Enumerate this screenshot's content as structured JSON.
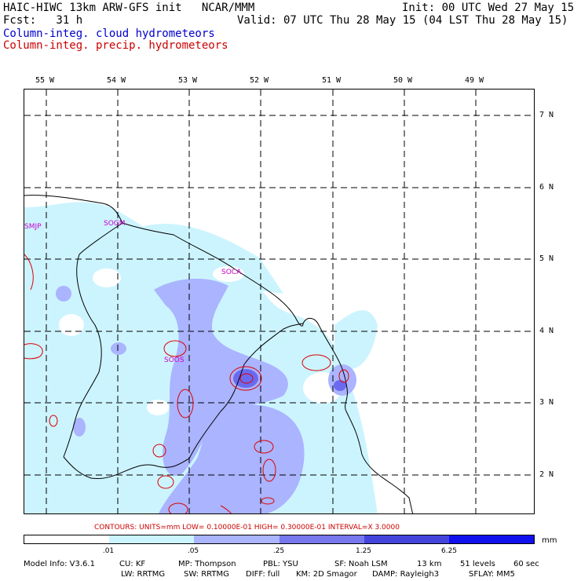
{
  "header": {
    "line1_left": "HAIC-HIWC 13km ARW-GFS init   NCAR/MMM",
    "line1_right": "Init: 00 UTC Wed 27 May 15",
    "line2_left": "Fcst:   31 h",
    "line2_right": "Valid: 07 UTC Thu 28 May 15 (04 LST Thu 28 May 15)",
    "field1": "Column-integ. cloud hydrometeors",
    "field2": "Column-integ. precip. hydrometeors"
  },
  "axes": {
    "lon_labels": [
      "55 W",
      "54 W",
      "53 W",
      "52 W",
      "51 W",
      "50 W",
      "49 W"
    ],
    "lat_labels": [
      "7 N",
      "6 N",
      "5 N",
      "4 N",
      "3 N",
      "2 N"
    ]
  },
  "stations": [
    "SMJP",
    "SOGM",
    "SOCA",
    "SOOS"
  ],
  "contours_note": "CONTOURS:  UNITS=mm  LOW= 0.10000E-01  HIGH= 0.30000E-01  INTERVAL=X  3.0000",
  "colorbar": {
    "ticks": [
      ".01",
      ".05",
      ".25",
      "1.25",
      "6.25"
    ],
    "unit": "mm",
    "colors": [
      "#ffffff",
      "#ccf4ff",
      "#aab4ff",
      "#7777ee",
      "#4444dd",
      "#1111ee",
      "#0000dd"
    ]
  },
  "footer": {
    "model_info": "Model Info: V3.6.1",
    "cu": "CU: KF",
    "mp": "MP: Thompson",
    "pbl": "PBL: YSU",
    "sf": "SF: Noah LSM",
    "res": "13 km",
    "levels": "51 levels",
    "dt": "60 sec",
    "lw": "LW: RRTMG",
    "sw": "SW: RRTMG",
    "diff": "DIFF: full",
    "km": "KM: 2D Smagor",
    "damp": "DAMP: Rayleigh3",
    "sflay": "SFLAY: MM5"
  }
}
